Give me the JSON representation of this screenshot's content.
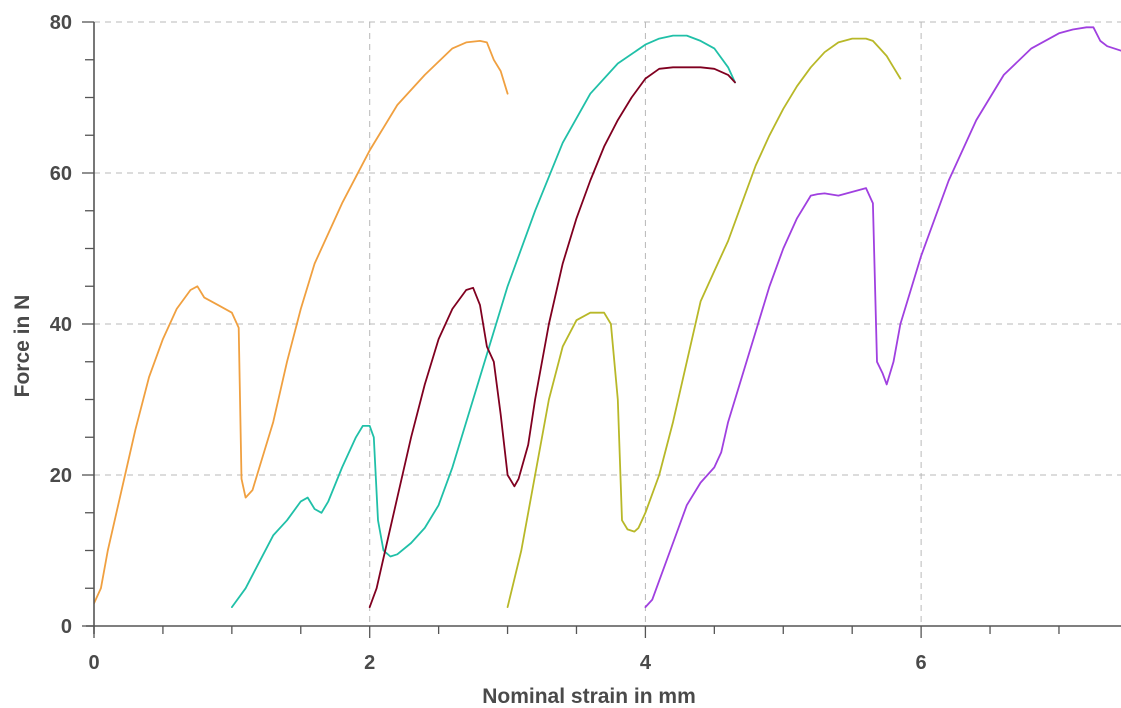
{
  "chart_data": {
    "type": "line",
    "title": "",
    "xlabel": "Nominal strain in mm",
    "ylabel": "Force in N",
    "xlim": [
      0,
      7.45
    ],
    "ylim": [
      0,
      80
    ],
    "x_ticks": [
      0,
      2,
      4,
      6
    ],
    "y_ticks": [
      0,
      20,
      40,
      60,
      80
    ],
    "grid": true,
    "legend": "none",
    "series": [
      {
        "color": "#f0a040",
        "x": [
          0,
          0.05,
          0.1,
          0.2,
          0.3,
          0.4,
          0.5,
          0.6,
          0.7,
          0.75,
          0.8,
          0.9,
          1.0,
          1.05,
          1.07,
          1.1,
          1.15,
          1.2,
          1.3,
          1.4,
          1.5,
          1.6,
          1.8,
          2.0,
          2.2,
          2.4,
          2.6,
          2.7,
          2.8,
          2.85,
          2.9,
          2.95,
          3.0
        ],
        "y": [
          3,
          5,
          10,
          18,
          26,
          33,
          38,
          42,
          44.5,
          45,
          43.5,
          42.5,
          41.5,
          39.5,
          19.5,
          17,
          18,
          21,
          27,
          35,
          42,
          48,
          56,
          63,
          69,
          73,
          76.5,
          77.3,
          77.5,
          77.3,
          75,
          73.5,
          70.5
        ]
      },
      {
        "color": "#20c0a8",
        "x": [
          1.0,
          1.1,
          1.2,
          1.3,
          1.4,
          1.5,
          1.55,
          1.6,
          1.65,
          1.7,
          1.8,
          1.9,
          1.95,
          2.0,
          2.03,
          2.06,
          2.1,
          2.15,
          2.2,
          2.3,
          2.4,
          2.5,
          2.6,
          2.7,
          2.8,
          3.0,
          3.2,
          3.4,
          3.6,
          3.8,
          4.0,
          4.1,
          4.2,
          4.3,
          4.4,
          4.5,
          4.6,
          4.65
        ],
        "y": [
          2.5,
          5,
          8.5,
          12,
          14,
          16.5,
          17,
          15.5,
          15,
          16.5,
          21,
          25,
          26.5,
          26.5,
          25,
          14,
          10,
          9.2,
          9.5,
          11,
          13,
          16,
          21,
          27,
          33,
          45,
          55,
          64,
          70.5,
          74.5,
          77,
          77.8,
          78.2,
          78.2,
          77.5,
          76.5,
          74,
          72
        ]
      },
      {
        "color": "#800020",
        "x": [
          2.0,
          2.05,
          2.1,
          2.2,
          2.3,
          2.4,
          2.5,
          2.6,
          2.7,
          2.75,
          2.8,
          2.85,
          2.9,
          2.95,
          3.0,
          3.05,
          3.08,
          3.15,
          3.2,
          3.3,
          3.4,
          3.5,
          3.6,
          3.7,
          3.8,
          3.9,
          4.0,
          4.1,
          4.2,
          4.3,
          4.4,
          4.5,
          4.6,
          4.65
        ],
        "y": [
          2.5,
          5,
          9,
          17,
          25,
          32,
          38,
          42,
          44.5,
          44.8,
          42.5,
          37,
          35,
          28,
          20,
          18.5,
          19.5,
          24,
          30,
          40,
          48,
          54,
          59,
          63.5,
          67,
          70,
          72.5,
          73.8,
          74,
          74,
          74,
          73.8,
          73,
          72
        ]
      },
      {
        "color": "#b8b828",
        "x": [
          3.0,
          3.1,
          3.2,
          3.3,
          3.4,
          3.5,
          3.6,
          3.7,
          3.75,
          3.8,
          3.83,
          3.87,
          3.92,
          3.95,
          4.0,
          4.1,
          4.2,
          4.3,
          4.4,
          4.5,
          4.6,
          4.7,
          4.8,
          4.9,
          5.0,
          5.1,
          5.2,
          5.3,
          5.4,
          5.5,
          5.6,
          5.65,
          5.7,
          5.75,
          5.8,
          5.85
        ],
        "y": [
          2.5,
          10,
          20,
          30,
          37,
          40.5,
          41.5,
          41.5,
          40,
          30,
          14,
          12.8,
          12.5,
          13,
          15,
          20,
          27,
          35,
          43,
          47,
          51,
          56,
          61,
          65,
          68.5,
          71.5,
          74,
          76,
          77.3,
          77.8,
          77.8,
          77.5,
          76.5,
          75.5,
          74,
          72.5
        ]
      },
      {
        "color": "#a040e0",
        "x": [
          4.0,
          4.05,
          4.1,
          4.2,
          4.3,
          4.4,
          4.5,
          4.55,
          4.6,
          4.7,
          4.8,
          4.9,
          5.0,
          5.1,
          5.2,
          5.25,
          5.3,
          5.4,
          5.5,
          5.6,
          5.65,
          5.68,
          5.72,
          5.75,
          5.8,
          5.85,
          5.9,
          6.0,
          6.2,
          6.4,
          6.6,
          6.8,
          7.0,
          7.1,
          7.2,
          7.25,
          7.3,
          7.35,
          7.45
        ],
        "y": [
          2.5,
          3.5,
          6,
          11,
          16,
          19,
          21,
          23,
          27,
          33,
          39,
          45,
          50,
          54,
          57,
          57.2,
          57.3,
          57,
          57.5,
          58,
          56,
          35,
          33.5,
          32,
          35,
          40,
          43,
          49,
          59,
          67,
          73,
          76.5,
          78.5,
          79,
          79.3,
          79.3,
          77.5,
          76.8,
          76.2
        ]
      }
    ]
  }
}
